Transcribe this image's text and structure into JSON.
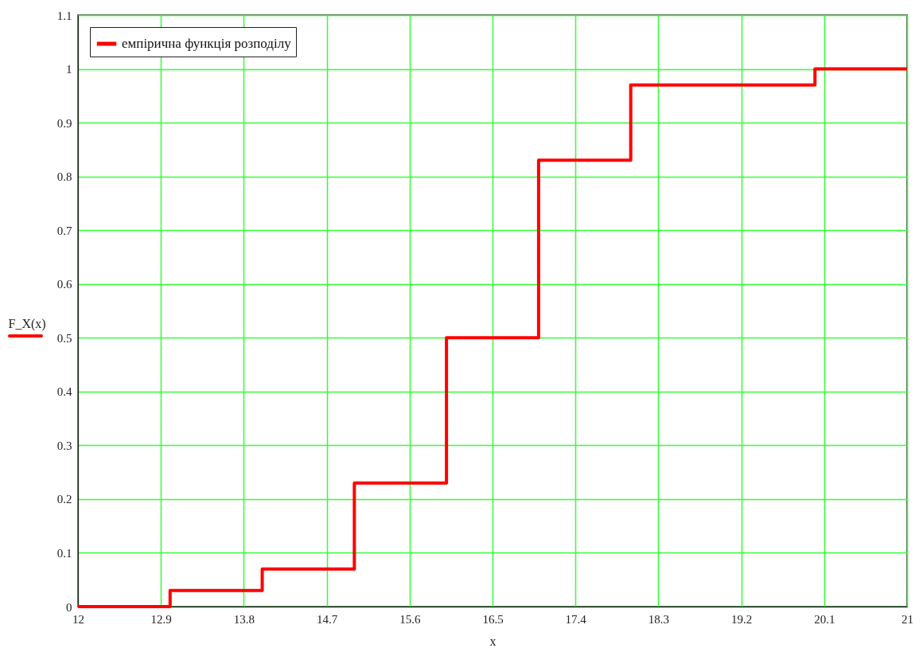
{
  "chart_data": {
    "type": "step",
    "xlabel": "x",
    "ylabel": "F_X(x)",
    "x": [
      12,
      13,
      14,
      15,
      16,
      17,
      18,
      20,
      21
    ],
    "series": [
      {
        "name": "емпірична функція розподілу",
        "color": "#ff0000",
        "values": [
          0,
          0.03,
          0.07,
          0.23,
          0.5,
          0.83,
          0.97,
          1,
          1
        ]
      }
    ],
    "xlim": [
      12,
      21
    ],
    "xticks": [
      12,
      12.9,
      13.8,
      14.7,
      15.6,
      16.5,
      17.4,
      18.3,
      19.2,
      20.1,
      21
    ],
    "ylim": [
      0,
      1.1
    ],
    "yticks": [
      0,
      0.1,
      0.2,
      0.3,
      0.4,
      0.5,
      0.6,
      0.7,
      0.8,
      0.9,
      1,
      1.1
    ],
    "grid": true,
    "legend": "top left",
    "line_style": "solid",
    "marker": "none"
  }
}
